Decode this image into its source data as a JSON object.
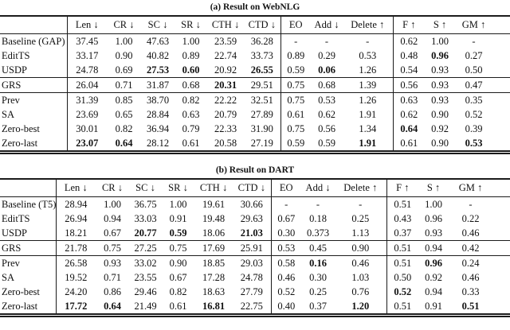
{
  "tables": [
    {
      "caption": "(a) Result on WebNLG",
      "columns": [
        "Len ↓",
        "CR ↓",
        "SC ↓",
        "SR ↓",
        "CTH ↓",
        "CTD ↓",
        "EO",
        "Add ↓",
        "Delete ↑",
        "F ↑",
        "S ↑",
        "GM ↑"
      ],
      "groups": [
        {
          "rows": [
            {
              "label": "Baseline (GAP)",
              "values": [
                "37.45",
                "1.00",
                "47.63",
                "1.00",
                "23.59",
                "36.28",
                "-",
                "-",
                "-",
                "0.62",
                "1.00",
                "-"
              ],
              "bold": []
            },
            {
              "label": "EditTS",
              "values": [
                "33.17",
                "0.90",
                "40.82",
                "0.89",
                "22.74",
                "33.73",
                "0.89",
                "0.29",
                "0.53",
                "0.48",
                "0.96",
                "0.27"
              ],
              "bold": [
                10
              ]
            },
            {
              "label": "USDP",
              "values": [
                "24.78",
                "0.69",
                "27.53",
                "0.60",
                "20.92",
                "26.55",
                "0.59",
                "0.06",
                "1.26",
                "0.54",
                "0.93",
                "0.50"
              ],
              "bold": [
                2,
                3,
                5,
                7
              ]
            }
          ]
        },
        {
          "rows": [
            {
              "label": "GRS",
              "values": [
                "26.04",
                "0.71",
                "31.87",
                "0.68",
                "20.31",
                "29.51",
                "0.75",
                "0.68",
                "1.39",
                "0.56",
                "0.93",
                "0.47"
              ],
              "bold": [
                4
              ]
            }
          ]
        },
        {
          "rows": [
            {
              "label": "Prev",
              "values": [
                "31.39",
                "0.85",
                "38.70",
                "0.82",
                "22.22",
                "32.51",
                "0.75",
                "0.53",
                "1.26",
                "0.63",
                "0.93",
                "0.35"
              ],
              "bold": []
            },
            {
              "label": "SA",
              "values": [
                "23.69",
                "0.65",
                "28.84",
                "0.63",
                "20.79",
                "27.89",
                "0.61",
                "0.62",
                "1.91",
                "0.62",
                "0.90",
                "0.52"
              ],
              "bold": []
            },
            {
              "label": "Zero-best",
              "values": [
                "30.01",
                "0.82",
                "36.94",
                "0.79",
                "22.33",
                "31.90",
                "0.75",
                "0.56",
                "1.34",
                "0.64",
                "0.92",
                "0.39"
              ],
              "bold": [
                9
              ]
            },
            {
              "label": "Zero-last",
              "values": [
                "23.07",
                "0.64",
                "28.12",
                "0.61",
                "20.58",
                "27.19",
                "0.59",
                "0.59",
                "1.91",
                "0.61",
                "0.90",
                "0.53"
              ],
              "bold": [
                0,
                1,
                8,
                11
              ]
            }
          ]
        }
      ]
    },
    {
      "caption": "(b) Result on DART",
      "columns": [
        "Len ↓",
        "CR ↓",
        "SC ↓",
        "SR ↓",
        "CTH ↓",
        "CTD ↓",
        "EO",
        "Add ↓",
        "Delete ↑",
        "F ↑",
        "S ↑",
        "GM ↑"
      ],
      "groups": [
        {
          "rows": [
            {
              "label": "Baseline (T5)",
              "values": [
                "28.94",
                "1.00",
                "36.75",
                "1.00",
                "19.61",
                "30.66",
                "-",
                "-",
                "-",
                "0.51",
                "1.00",
                "-"
              ],
              "bold": []
            },
            {
              "label": "EditTS",
              "values": [
                "26.94",
                "0.94",
                "33.03",
                "0.91",
                "19.48",
                "29.63",
                "0.67",
                "0.18",
                "0.25",
                "0.43",
                "0.96",
                "0.22"
              ],
              "bold": []
            },
            {
              "label": "USDP",
              "values": [
                "18.21",
                "0.67",
                "20.77",
                "0.59",
                "18.06",
                "21.03",
                "0.30",
                "0.373",
                "1.13",
                "0.37",
                "0.93",
                "0.46"
              ],
              "bold": [
                2,
                3,
                5
              ]
            }
          ]
        },
        {
          "rows": [
            {
              "label": "GRS",
              "values": [
                "21.78",
                "0.75",
                "27.25",
                "0.75",
                "17.69",
                "25.91",
                "0.53",
                "0.45",
                "0.90",
                "0.51",
                "0.94",
                "0.42"
              ],
              "bold": []
            }
          ]
        },
        {
          "rows": [
            {
              "label": "Prev",
              "values": [
                "26.58",
                "0.93",
                "33.02",
                "0.90",
                "18.85",
                "29.03",
                "0.58",
                "0.16",
                "0.46",
                "0.51",
                "0.96",
                "0.24"
              ],
              "bold": [
                7,
                10
              ]
            },
            {
              "label": "SA",
              "values": [
                "19.52",
                "0.71",
                "23.55",
                "0.67",
                "17.28",
                "24.78",
                "0.46",
                "0.30",
                "1.03",
                "0.50",
                "0.92",
                "0.46"
              ],
              "bold": []
            },
            {
              "label": "Zero-best",
              "values": [
                "24.20",
                "0.86",
                "29.46",
                "0.82",
                "18.63",
                "27.79",
                "0.52",
                "0.25",
                "0.76",
                "0.52",
                "0.94",
                "0.33"
              ],
              "bold": [
                9
              ]
            },
            {
              "label": "Zero-last",
              "values": [
                "17.72",
                "0.64",
                "21.49",
                "0.61",
                "16.81",
                "22.75",
                "0.40",
                "0.37",
                "1.20",
                "0.51",
                "0.91",
                "0.51"
              ],
              "bold": [
                0,
                1,
                4,
                8,
                11
              ]
            }
          ]
        }
      ]
    }
  ]
}
